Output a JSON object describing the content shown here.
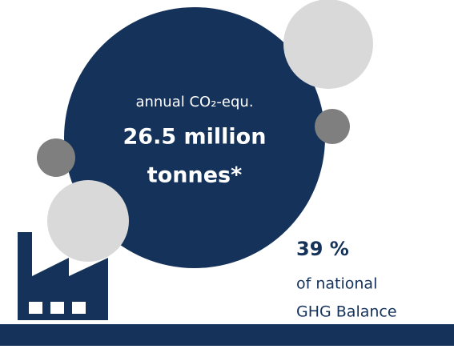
{
  "main_circle": {
    "label": "annual CO₂-equ.",
    "amount_line1": "26.5 million",
    "amount_line2": "tonnes*"
  },
  "share": {
    "value": "39 %",
    "line1": "of national",
    "line2": "GHG Balance"
  }
}
